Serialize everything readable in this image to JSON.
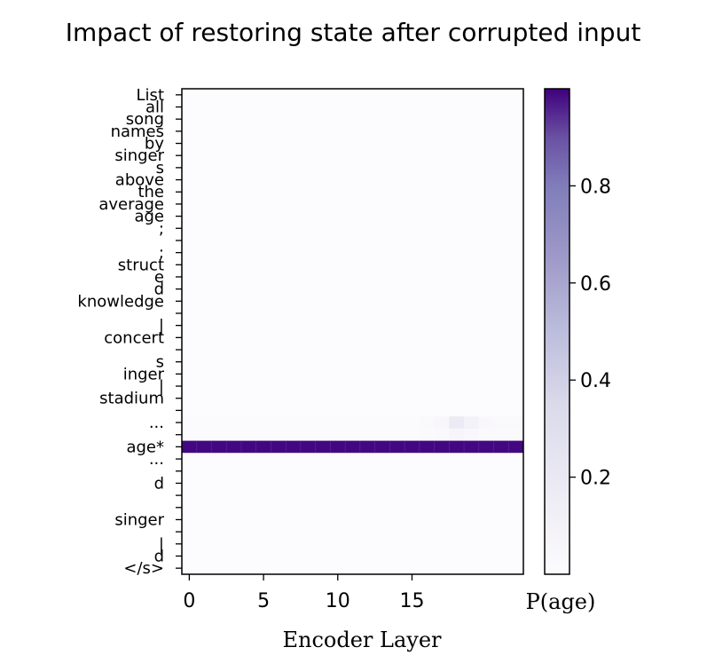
{
  "chart_data": {
    "type": "heatmap",
    "title": "Impact of restoring state after corrupted input",
    "xlabel": "Encoder Layer",
    "colorbar_label": "P(age)",
    "colormap": "purples",
    "colors": {
      "low": "#fcfbfd",
      "high": "#3f007d"
    },
    "x_ticks": [
      0,
      5,
      10,
      15
    ],
    "n_layers": 23,
    "color_range": [
      0.0,
      1.0
    ],
    "colorbar_ticks": [
      0.2,
      0.4,
      0.6,
      0.8
    ],
    "tokens": [
      "List",
      "all",
      "song",
      "names",
      "by",
      "singer",
      "s",
      "above",
      "the",
      "average",
      "age",
      ";",
      "",
      ";",
      "struct",
      "e",
      "d",
      "knowledge",
      "",
      "|",
      "concert",
      "",
      "s",
      "inger",
      "|",
      "stadium",
      "",
      "...",
      "",
      "age*",
      "...",
      "",
      "d",
      "",
      "",
      "singer",
      "",
      "|",
      "d",
      "</s>"
    ],
    "highlight_row": 29,
    "row_values": {
      "27": [
        0.01,
        0.01,
        0.01,
        0.01,
        0.01,
        0.01,
        0.01,
        0.01,
        0.01,
        0.01,
        0.01,
        0.01,
        0.01,
        0.01,
        0.01,
        0.01,
        0.03,
        0.05,
        0.18,
        0.1,
        0.04,
        0.03,
        0.03
      ],
      "28": [
        0.01,
        0.01,
        0.01,
        0.01,
        0.01,
        0.01,
        0.01,
        0.01,
        0.01,
        0.01,
        0.01,
        0.01,
        0.01,
        0.01,
        0.01,
        0.01,
        0.02,
        0.03,
        0.06,
        0.04,
        0.02,
        0.02,
        0.02
      ],
      "29": [
        0.99,
        0.99,
        0.99,
        0.99,
        0.99,
        0.99,
        0.99,
        0.99,
        0.99,
        0.99,
        0.99,
        0.99,
        0.99,
        0.99,
        0.99,
        0.99,
        0.99,
        0.99,
        0.99,
        0.99,
        0.99,
        0.99,
        0.99
      ]
    },
    "background_value": 0.0
  }
}
